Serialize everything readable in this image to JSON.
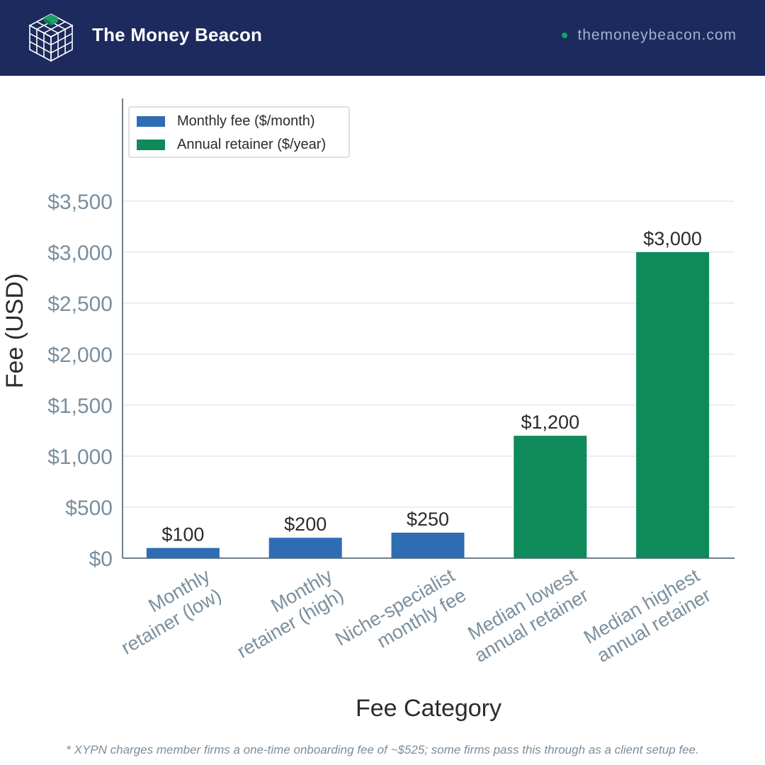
{
  "header": {
    "brand": "The Money Beacon",
    "site": "themoneybeacon.com",
    "icons": [
      "cube-grid-logo-icon",
      "status-dot-icon"
    ]
  },
  "colors": {
    "header_bg": "#1c2a5e",
    "monthly": "#2e6db4",
    "annual": "#0f8a5a",
    "tick_text": "#7a8f9e",
    "value_text": "#2b2b2b"
  },
  "chart_data": {
    "type": "bar",
    "categories": [
      "Monthly retainer (low)",
      "Monthly retainer (high)",
      "Niche-specialist monthly fee",
      "Median lowest annual retainer",
      "Median highest annual retainer"
    ],
    "category_lines": [
      [
        "Monthly",
        "retainer (low)"
      ],
      [
        "Monthly",
        "retainer (high)"
      ],
      [
        "Niche-specialist",
        "monthly fee"
      ],
      [
        "Median lowest",
        "annual retainer"
      ],
      [
        "Median highest",
        "annual retainer"
      ]
    ],
    "series": [
      {
        "name": "Monthly fee ($/month)",
        "color": "#2e6db4",
        "values": [
          100,
          200,
          250,
          null,
          null
        ]
      },
      {
        "name": "Annual retainer ($/year)",
        "color": "#0f8a5a",
        "values": [
          null,
          null,
          null,
          1200,
          3000
        ]
      }
    ],
    "data_labels": [
      "$100",
      "$200",
      "$250",
      "$1,200",
      "$3,000"
    ],
    "xlabel": "Fee Category",
    "ylabel": "Fee (USD)",
    "ylim": [
      0,
      4500
    ],
    "yticks": [
      0,
      500,
      1000,
      1500,
      2000,
      2500,
      3000,
      3500
    ],
    "ytick_labels": [
      "$0",
      "$500",
      "$1,000",
      "$1,500",
      "$2,000",
      "$2,500",
      "$3,000",
      "$3,500"
    ],
    "grid": true,
    "legend_position": "top-left"
  },
  "footnote": "* XYPN charges member firms a one-time onboarding fee of ~$525; some firms pass this through as a client setup fee."
}
